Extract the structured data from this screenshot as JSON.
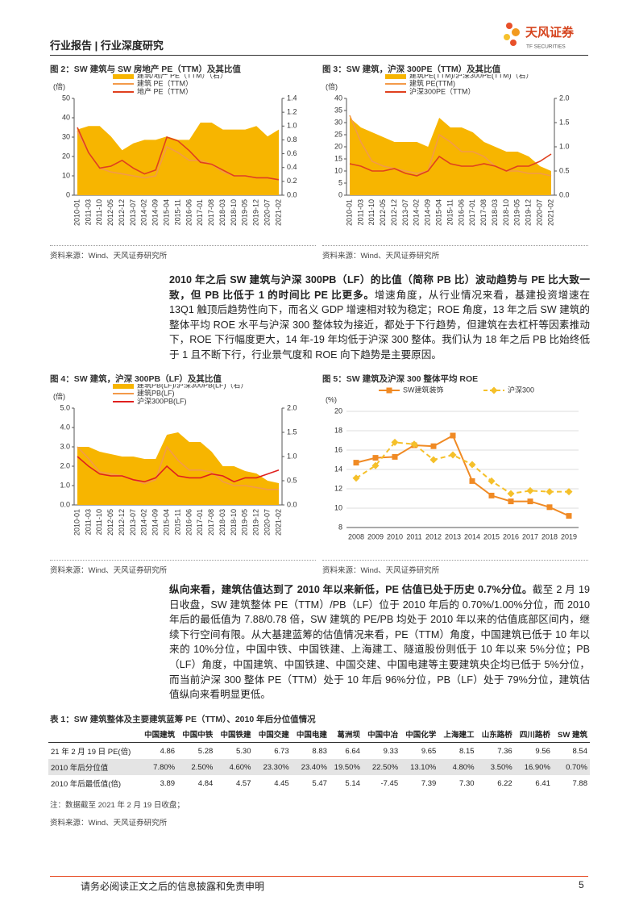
{
  "header": {
    "left": "行业报告 | 行业深度研究",
    "logo": "天风证券",
    "logo_sub": "TF SECURITIES"
  },
  "chart_data": [
    {
      "type": "line",
      "title": "图 2：SW 建筑与 SW 房地产 PE（TTM）及其比值",
      "y_label": "(倍)",
      "legend": "top-left",
      "categories": [
        "2010-01",
        "2011-03",
        "2011-10",
        "2012-05",
        "2012-12",
        "2013-07",
        "2014-02",
        "2014-09",
        "2015-04",
        "2015-11",
        "2016-06",
        "2017-01",
        "2017-08",
        "2018-03",
        "2018-10",
        "2019-05",
        "2019-12",
        "2020-07",
        "2021-02"
      ],
      "series": [
        {
          "name": "建筑/地产 PE（TTM）（右）",
          "style": "area",
          "axis": "y2",
          "color": "#f7b500",
          "values": [
            0.95,
            1.0,
            1.0,
            0.85,
            0.65,
            0.75,
            0.8,
            0.8,
            0.85,
            0.8,
            0.8,
            1.05,
            1.05,
            0.95,
            0.95,
            0.95,
            1.0,
            0.85,
            0.95
          ]
        },
        {
          "name": "建筑 PE（TTM）",
          "color": "#f39a4a",
          "values": [
            33,
            22,
            14,
            12,
            11,
            10,
            9,
            10,
            25,
            22,
            18,
            18,
            16,
            12,
            10,
            10,
            9,
            9,
            8
          ]
        },
        {
          "name": "地产 PE（TTM）",
          "color": "#e0401e",
          "values": [
            35,
            22,
            14,
            15,
            18,
            14,
            11,
            13,
            30,
            28,
            23,
            17,
            16,
            13,
            10,
            10,
            9,
            9,
            8
          ]
        }
      ],
      "ylim": [
        0,
        50
      ],
      "yticks": [
        0,
        10,
        20,
        30,
        40,
        50
      ],
      "y2lim": [
        0,
        1.4
      ],
      "y2ticks": [
        {
          "value": 0,
          "label": "0.0"
        },
        {
          "value": 0.2,
          "label": "0.2"
        },
        {
          "value": 0.4,
          "label": "0.4"
        },
        {
          "value": 0.6,
          "label": "0.6"
        },
        {
          "value": 0.8,
          "label": "0.8"
        },
        {
          "value": 1,
          "label": "1.0"
        },
        {
          "value": 1.2,
          "label": "1.2"
        },
        {
          "value": 1.4,
          "label": "1.4"
        }
      ],
      "source": "资料来源：Wind、天风证券研究所"
    },
    {
      "type": "line",
      "title": "图 3：SW 建筑，沪深 300PE（TTM）及其比值",
      "y_label": "(倍)",
      "legend": "top-left",
      "categories": [
        "2010-01",
        "2011-03",
        "2011-10",
        "2012-05",
        "2012-12",
        "2013-07",
        "2014-02",
        "2014-09",
        "2015-04",
        "2015-11",
        "2016-06",
        "2017-01",
        "2017-08",
        "2018-03",
        "2018-10",
        "2019-05",
        "2019-12",
        "2020-07",
        "2021-02"
      ],
      "series": [
        {
          "name": "建筑PE(TTM)/沪深300PE(TTM)（右）",
          "style": "area",
          "axis": "y2",
          "color": "#f7b500",
          "values": [
            1.6,
            1.4,
            1.3,
            1.2,
            1.1,
            1.1,
            1.1,
            1.0,
            1.6,
            1.4,
            1.4,
            1.3,
            1.1,
            1.0,
            0.9,
            0.9,
            0.8,
            0.6,
            0.5
          ]
        },
        {
          "name": "建筑 PE(TTM)",
          "color": "#f39a4a",
          "values": [
            33,
            22,
            14,
            12,
            11,
            10,
            9,
            10,
            25,
            22,
            18,
            18,
            16,
            12,
            10,
            10,
            9,
            9,
            8
          ]
        },
        {
          "name": "沪深300PE（TTM）",
          "color": "#e0401e",
          "values": [
            13,
            12,
            10,
            10,
            11,
            9,
            8,
            10,
            16,
            13,
            12,
            12,
            13,
            12,
            10,
            12,
            12,
            14,
            17
          ]
        }
      ],
      "ylim": [
        0,
        40
      ],
      "yticks": [
        0,
        5,
        10,
        15,
        20,
        25,
        30,
        35,
        40
      ],
      "y2lim": [
        0,
        2
      ],
      "y2ticks": [
        {
          "value": 0,
          "label": "0.0"
        },
        {
          "value": 0.5,
          "label": "0.5"
        },
        {
          "value": 1,
          "label": "1.0"
        },
        {
          "value": 1.5,
          "label": "1.5"
        },
        {
          "value": 2,
          "label": "2.0"
        }
      ],
      "source": "资料来源：Wind、天风证券研究所"
    },
    {
      "type": "line",
      "title": "图 4：SW 建筑，沪深 300PB（LF）及其比值",
      "y_label": "(倍)",
      "legend": "top-left",
      "categories": [
        "2010-01",
        "2011-03",
        "2011-10",
        "2012-05",
        "2012-12",
        "2013-07",
        "2014-02",
        "2014-09",
        "2015-04",
        "2015-11",
        "2016-06",
        "2017-01",
        "2017-08",
        "2018-03",
        "2018-10",
        "2019-05",
        "2019-12",
        "2020-07",
        "2021-02"
      ],
      "series": [
        {
          "name": "建筑PB(LF)/沪深300PB(LF)（右）",
          "style": "area",
          "axis": "y2",
          "color": "#f7b500",
          "values": [
            1.2,
            1.2,
            1.1,
            1.05,
            1.0,
            1.0,
            0.95,
            0.95,
            1.45,
            1.5,
            1.3,
            1.3,
            1.1,
            0.8,
            0.8,
            0.7,
            0.65,
            0.5,
            0.45
          ]
        },
        {
          "name": "建筑PB(LF)",
          "color": "#f39a4a",
          "values": [
            3.0,
            2.4,
            1.7,
            1.6,
            1.5,
            1.3,
            1.1,
            1.3,
            3.0,
            2.3,
            1.8,
            1.8,
            1.7,
            1.2,
            1.0,
            1.0,
            0.9,
            0.8,
            0.8
          ]
        },
        {
          "name": "沪深300PB(LF)",
          "color": "#e0201e",
          "values": [
            2.5,
            2.0,
            1.6,
            1.5,
            1.5,
            1.3,
            1.2,
            1.4,
            2.0,
            1.5,
            1.4,
            1.4,
            1.6,
            1.5,
            1.2,
            1.4,
            1.4,
            1.6,
            1.8
          ]
        }
      ],
      "ylim": [
        0,
        5
      ],
      "yticks": [
        {
          "value": 0,
          "label": "0.0"
        },
        {
          "value": 1,
          "label": "1.0"
        },
        {
          "value": 2,
          "label": "2.0"
        },
        {
          "value": 3,
          "label": "3.0"
        },
        {
          "value": 4,
          "label": "4.0"
        },
        {
          "value": 5,
          "label": "5.0"
        }
      ],
      "y2lim": [
        0,
        2
      ],
      "y2ticks": [
        {
          "value": 0,
          "label": "0.0"
        },
        {
          "value": 0.5,
          "label": "0.5"
        },
        {
          "value": 1,
          "label": "1.0"
        },
        {
          "value": 1.5,
          "label": "1.5"
        },
        {
          "value": 2,
          "label": "2.0"
        }
      ],
      "source": "资料来源：Wind、天风证券研究所"
    },
    {
      "type": "line",
      "title": "图 5：SW 建筑及沪深 300 整体平均 ROE",
      "y_label": "(%)",
      "legend": "top",
      "categories": [
        "2008",
        "2009",
        "2010",
        "2011",
        "2012",
        "2013",
        "2014",
        "2015",
        "2016",
        "2017",
        "2018",
        "2019"
      ],
      "series": [
        {
          "name": "SW建筑装饰",
          "color": "#f08a24",
          "marker": "square",
          "values": [
            14.7,
            15.2,
            15.3,
            16.5,
            16.4,
            17.5,
            12.8,
            11.3,
            10.7,
            10.7,
            10.1,
            9.2
          ]
        },
        {
          "name": "沪深300",
          "color": "#f5c02a",
          "marker": "diamond",
          "dash": true,
          "values": [
            13.1,
            14.4,
            16.8,
            16.6,
            15.0,
            15.5,
            14.5,
            12.8,
            11.5,
            11.8,
            11.7,
            11.7
          ]
        }
      ],
      "ylim": [
        8,
        20
      ],
      "yticks": [
        8,
        10,
        12,
        14,
        16,
        18,
        20
      ],
      "source": "资料来源：Wind、天风证券研究所"
    }
  ],
  "paragraphs": [
    {
      "lead": "2010 年之后 SW 建筑与沪深 300PB（LF）的比值（简称 PB 比）波动趋势与 PE 比大致一致，但 PB 比低于 1 的时间比 PE 比更多。",
      "body": "增速角度，从行业情况来看，基建投资增速在 13Q1 触顶后趋势性向下，而名义 GDP 增速相对较为稳定；ROE 角度，13 年之后 SW 建筑的整体平均 ROE 水平与沪深 300 整体较为接近，都处于下行趋势，但建筑在去杠杆等因素推动下，ROE 下行幅度更大，14 年-19 年均低于沪深 300 整体。我们认为 18 年之后 PB 比始终低于 1 且不断下行，行业景气度和 ROE 向下趋势是主要原因。"
    },
    {
      "lead": "纵向来看，建筑估值达到了 2010 年以来新低，PE 估值已处于历史 0.7%分位。",
      "body": "截至 2 月 19 日收盘，SW 建筑整体 PE（TTM）/PB（LF）位于 2010 年后的 0.70%/1.00%分位，而 2010 年后的最低值为 7.88/0.78 倍，SW 建筑的 PE/PB 均处于 2010 年以来的估值底部区间内，继续下行空间有限。从大基建蓝筹的估值情况来看，PE（TTM）角度，中国建筑已低于 10 年以来的 10%分位，中国中铁、中国铁建、上海建工、隧道股份则低于 10 年以来 5%分位；PB（LF）角度，中国建筑、中国铁建、中国交建、中国电建等主要建筑央企均已低于 5%分位，而当前沪深 300 整体 PE（TTM）处于 10 年后 96%分位，PB（LF）处于 79%分位，建筑估值纵向来看明显更低。"
    }
  ],
  "table": {
    "title": "表 1：SW 建筑整体及主要建筑蓝筹 PE（TTM）、2010 年后分位值情况",
    "columns": [
      "中国建筑",
      "中国中铁",
      "中国铁建",
      "中国交建",
      "中国电建",
      "葛洲坝",
      "中国中冶",
      "中国化学",
      "上海建工",
      "山东路桥",
      "四川路桥",
      "SW 建筑"
    ],
    "rows": [
      [
        "21 年 2 月 19 日 PE(倍)",
        "4.86",
        "5.28",
        "5.30",
        "6.73",
        "8.83",
        "6.64",
        "9.33",
        "9.65",
        "8.15",
        "7.36",
        "9.56",
        "8.54"
      ],
      [
        "2010 年后分位值",
        "7.80%",
        "2.50%",
        "4.60%",
        "23.30%",
        "23.40%",
        "19.50%",
        "22.50%",
        "13.10%",
        "4.80%",
        "3.50%",
        "16.90%",
        "0.70%"
      ],
      [
        "2010 年后最低值(倍)",
        "3.89",
        "4.84",
        "4.57",
        "4.45",
        "5.47",
        "5.14",
        "-7.45",
        "7.39",
        "7.30",
        "6.22",
        "6.41",
        "7.88"
      ]
    ],
    "note": "注：数据截至 2021 年 2 月 19 日收盘；",
    "source": "资料来源：Wind、天风证券研究所"
  },
  "footer": {
    "disclaimer": "请务必阅读正文之后的信息披露和免责申明",
    "page": "5"
  }
}
